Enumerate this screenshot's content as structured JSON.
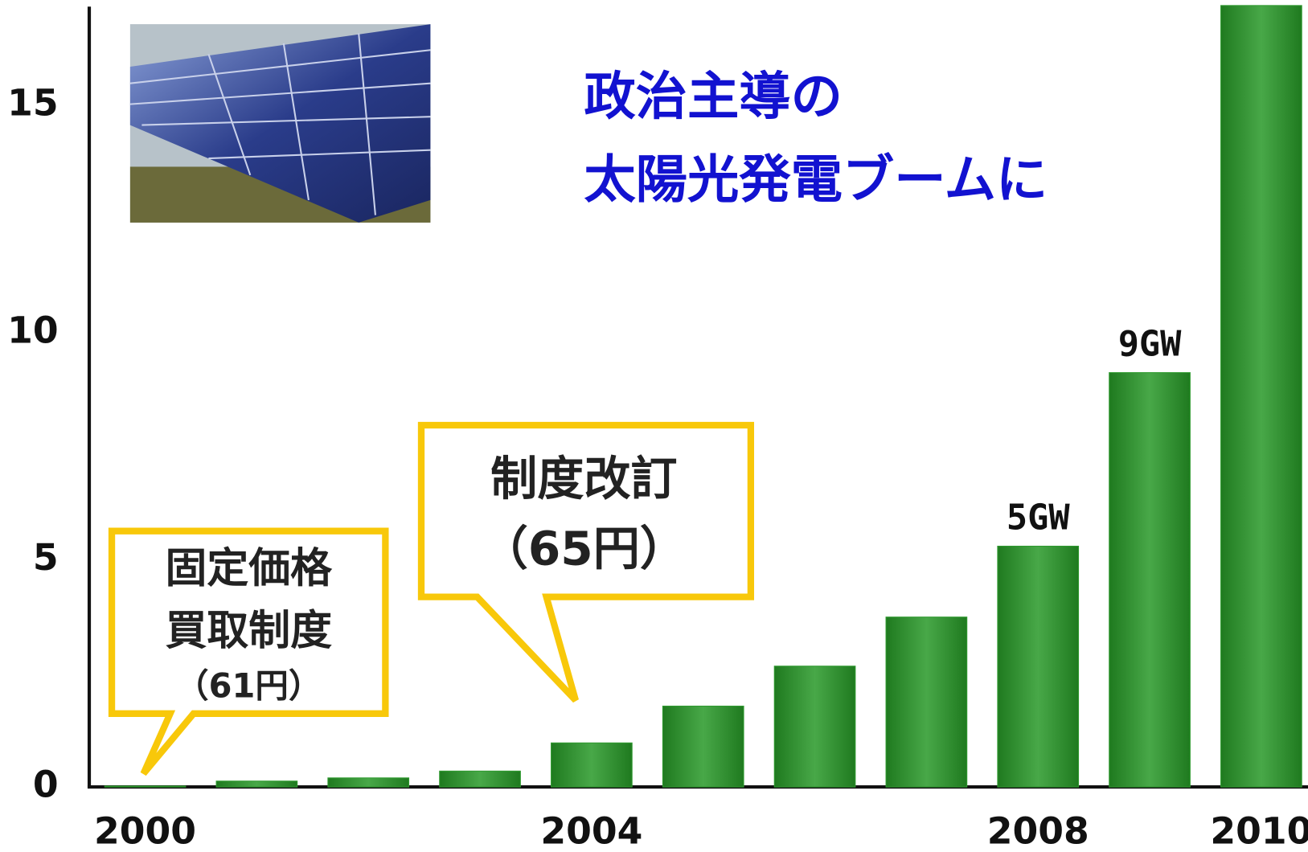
{
  "chart_data": {
    "type": "bar",
    "annotations": [
      "政治主導の",
      "太陽光発電ブームに",
      "固定価格",
      "買取制度",
      "（61円）",
      "制度改訂",
      "（65円）"
    ],
    "categories": [
      "2000",
      null,
      null,
      null,
      "2004",
      null,
      null,
      null,
      "2008",
      null,
      "2010"
    ],
    "values": [
      0.02,
      0.13,
      0.2,
      0.35,
      0.97,
      1.78,
      2.66,
      3.74,
      5.3,
      9.12,
      17.2
    ],
    "value_labels": [
      null,
      null,
      null,
      null,
      null,
      null,
      null,
      null,
      "5GW",
      "9GW",
      null
    ],
    "color": "#2f9a2f",
    "ylim": [
      0,
      17.2
    ],
    "yticks": [
      0,
      5,
      10,
      15
    ],
    "grid": false
  }
}
